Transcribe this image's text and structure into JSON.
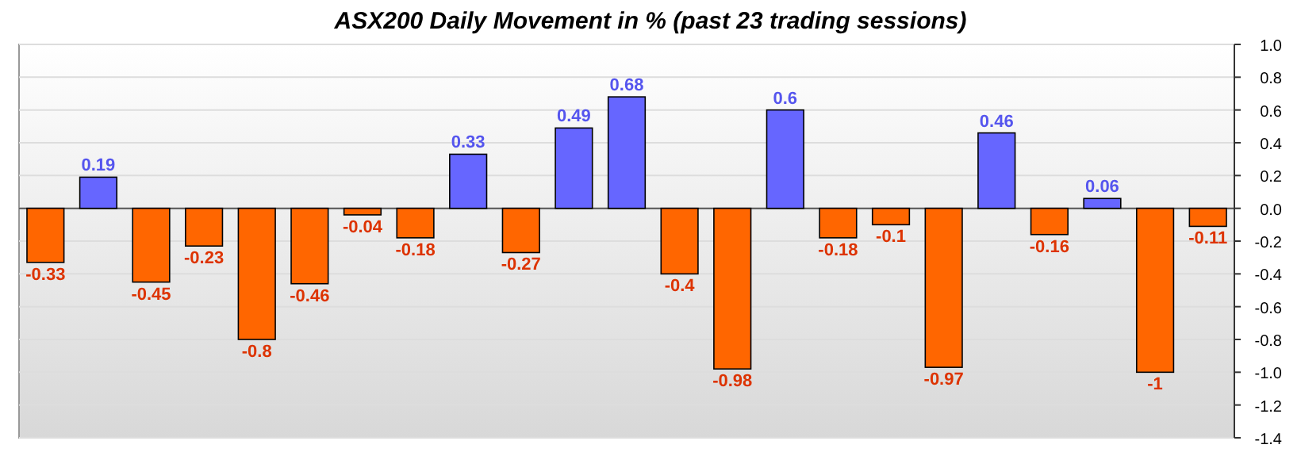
{
  "chart_data": {
    "type": "bar",
    "title": "ASX200 Daily Movement in % (past 23 trading sessions)",
    "categories": [
      null,
      null,
      null,
      null,
      null,
      null,
      null,
      null,
      null,
      null,
      null,
      null,
      null,
      null,
      null,
      null,
      null,
      null,
      null,
      null,
      null,
      null,
      null
    ],
    "values": [
      -0.33,
      0.19,
      -0.45,
      -0.23,
      -0.8,
      -0.46,
      -0.04,
      -0.18,
      0.33,
      -0.27,
      0.49,
      0.68,
      -0.4,
      -0.98,
      0.6,
      -0.18,
      -0.1,
      -0.97,
      0.46,
      -0.16,
      0.06,
      -1,
      -0.11
    ],
    "colors": [
      "#ff6600",
      "#6666ff",
      "#ff6600",
      "#ff6600",
      "#ff6600",
      "#ff6600",
      "#ff6600",
      "#ff6600",
      "#6666ff",
      "#ff6600",
      "#6666ff",
      "#6666ff",
      "#ff6600",
      "#ff6600",
      "#6666ff",
      "#ff6600",
      "#ff6600",
      "#ff6600",
      "#6666ff",
      "#ff6600",
      "#6666ff",
      "#ff6600",
      "#ff6600"
    ],
    "ylim": [
      -1.4,
      1.0
    ],
    "yticks": [
      {
        "value": 1.0,
        "label": "1.0"
      },
      0.8,
      0.6,
      0.4,
      0.2,
      {
        "value": 0,
        "label": "0.0"
      },
      -0.2,
      -0.4,
      -0.6,
      -0.8,
      {
        "value": -1.0,
        "label": "-1.0"
      },
      -1.2,
      -1.4
    ],
    "grid": "y",
    "data_labels": true
  }
}
